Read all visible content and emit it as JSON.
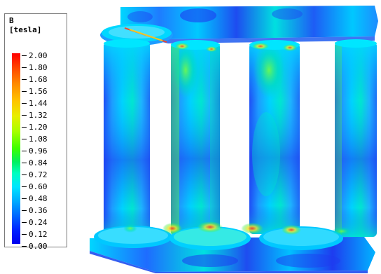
{
  "legend": {
    "title": "B",
    "unit": "[tesla]",
    "labels": [
      "2.00",
      "1.80",
      "1.68",
      "1.56",
      "1.44",
      "1.32",
      "1.20",
      "1.08",
      "0.96",
      "0.84",
      "0.72",
      "0.60",
      "0.48",
      "0.36",
      "0.24",
      "0.12",
      "0.00"
    ],
    "colors": [
      "#ff0000",
      "#ff4a00",
      "#ff8a00",
      "#ffc400",
      "#e8ee00",
      "#a8ff00",
      "#3cff00",
      "#00f060",
      "#00ffc0",
      "#00e6ff",
      "#00a8ff",
      "#0060ff",
      "#0020ff",
      "#0000ee"
    ]
  },
  "model": {
    "field_colors": {
      "low": "#1e3cf0",
      "mid_low": "#1e8cff",
      "mid": "#00c8ff",
      "mid_high": "#00e6c8",
      "green": "#50f050",
      "yellow": "#f0e628",
      "hot": "#ff3c1e"
    }
  }
}
